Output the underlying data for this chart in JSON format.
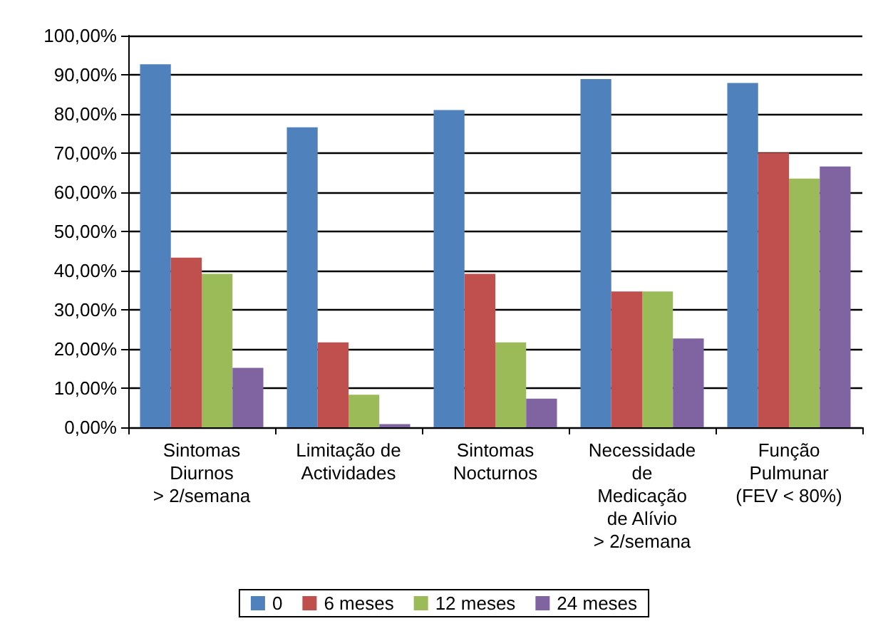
{
  "chart_data": {
    "type": "bar",
    "categories": [
      "Sintomas\nDiurnos\n> 2/semana",
      "Limitação de\nActividades",
      "Sintomas\nNocturnos",
      "Necessidade\nde\nMedicação\nde Alívio\n> 2/semana",
      "Função\nPulmunar\n(FEV < 80%)"
    ],
    "series": [
      {
        "name": "0",
        "color": "#4f81bd",
        "values": [
          92.7,
          76.6,
          81.0,
          88.9,
          87.9
        ]
      },
      {
        "name": "6 meses",
        "color": "#c0504d",
        "values": [
          43.3,
          21.7,
          39.2,
          34.7,
          70.1
        ]
      },
      {
        "name": "12 meses",
        "color": "#9bbb59",
        "values": [
          39.2,
          8.3,
          21.7,
          34.7,
          63.5
        ]
      },
      {
        "name": "24 meses",
        "color": "#8064a2",
        "values": [
          15.2,
          0.8,
          7.3,
          22.7,
          66.6
        ]
      }
    ],
    "ylim": [
      0,
      100
    ],
    "yticks": [
      {
        "value": 0,
        "label": "0,00%"
      },
      {
        "value": 10,
        "label": "10,00%"
      },
      {
        "value": 20,
        "label": "20,00%"
      },
      {
        "value": 30,
        "label": "30,00%"
      },
      {
        "value": 40,
        "label": "40,00%"
      },
      {
        "value": 50,
        "label": "50,00%"
      },
      {
        "value": 60,
        "label": "60,00%"
      },
      {
        "value": 70,
        "label": "70,00%"
      },
      {
        "value": 80,
        "label": "80,00%"
      },
      {
        "value": 90,
        "label": "90,00%"
      },
      {
        "value": 100,
        "label": "100,00%"
      }
    ],
    "grid": "y",
    "legend": "bottom"
  }
}
